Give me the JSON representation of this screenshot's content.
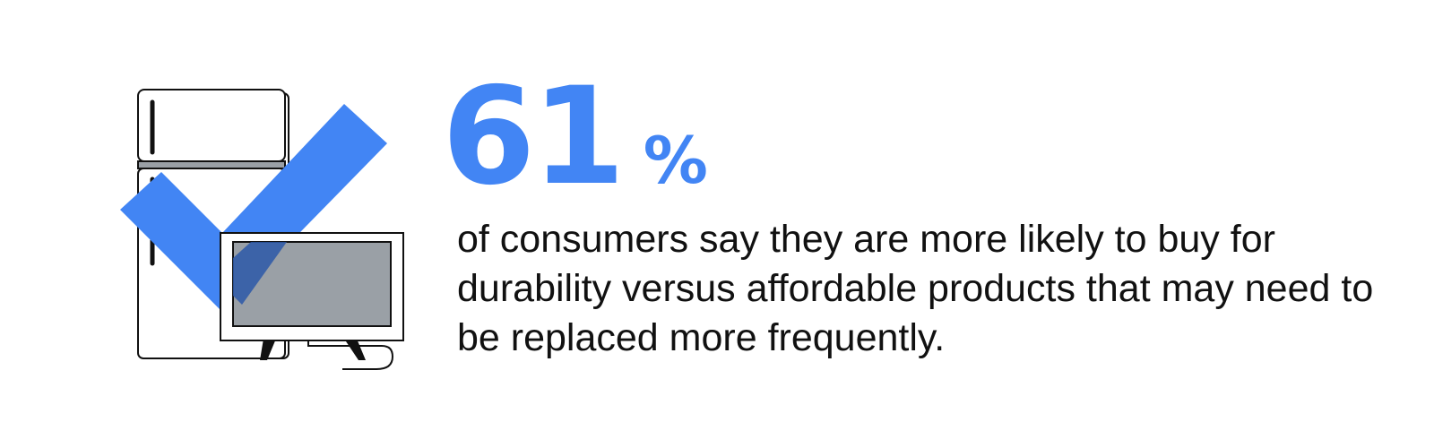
{
  "statistic": {
    "value": "61",
    "unit": "%"
  },
  "description": "of consumers say they are more likely to buy for durability versus affordable products that may need to be replaced more frequently.",
  "illustration": {
    "icons": [
      "refrigerator-icon",
      "checkmark-icon",
      "monitor-icon"
    ]
  },
  "colors": {
    "accent": "#4285f4",
    "checkmark": "#4285f4",
    "checkmark_overlap": "#2b58a8",
    "screen": "#9aa0a6",
    "text": "#111111",
    "background": "#ffffff"
  }
}
